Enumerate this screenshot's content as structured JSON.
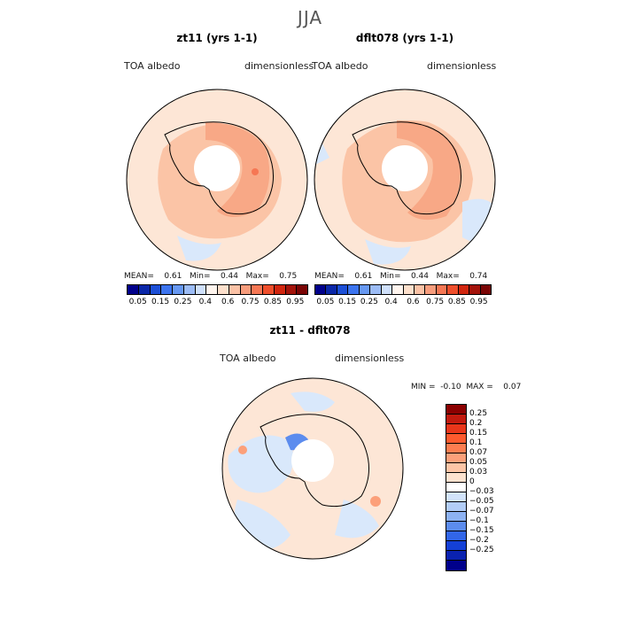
{
  "season": "JJA",
  "panels": [
    {
      "title": "zt11 (yrs 1-1)",
      "variable": "TOA albedo",
      "units": "dimensionless",
      "stats": {
        "mean_label": "MEAN=",
        "mean": "0.61",
        "min_label": "Min=",
        "min": "0.44",
        "max_label": "Max=",
        "max": "0.75"
      }
    },
    {
      "title": "dflt078 (yrs 1-1)",
      "variable": "TOA albedo",
      "units": "dimensionless",
      "stats": {
        "mean_label": "MEAN=",
        "mean": "0.61",
        "min_label": "Min=",
        "min": "0.44",
        "max_label": "Max=",
        "max": "0.74"
      }
    }
  ],
  "colorbar": {
    "colors": [
      "#00008b",
      "#0a27a8",
      "#1c4fd6",
      "#3c74ef",
      "#6798f2",
      "#9cbcf6",
      "#cfe0fb",
      "#fff5ee",
      "#fde0cc",
      "#fbc2a6",
      "#f89d7d",
      "#f67754",
      "#ef4f2c",
      "#d1260f",
      "#a3130a",
      "#7a0505"
    ],
    "labels": [
      "0.05",
      "0.15",
      "0.25",
      "0.4",
      "0.6",
      "0.75",
      "0.85",
      "0.95"
    ]
  },
  "diff": {
    "title": "zt11 - dflt078",
    "variable": "TOA albedo",
    "units": "dimensionless",
    "stats": {
      "min_label": "MIN =",
      "min": "-0.10",
      "max_label": "MAX =",
      "max": "0.07"
    },
    "colorbar": {
      "colors": [
        "#8b0000",
        "#c21a0e",
        "#e8361a",
        "#fd5a2e",
        "#fd7d50",
        "#fca07a",
        "#fdc5a6",
        "#fde2cf",
        "#ffffff",
        "#d2e3fa",
        "#b2cdf6",
        "#8db2f2",
        "#5c8cee",
        "#3266e8",
        "#1440d6",
        "#0a22b0",
        "#00008b"
      ],
      "labels": [
        "0.25",
        "0.2",
        "0.15",
        "0.1",
        "0.07",
        "0.05",
        "0.03",
        "0",
        "−0.03",
        "−0.05",
        "−0.07",
        "−0.1",
        "−0.15",
        "−0.2",
        "−0.25"
      ]
    }
  }
}
